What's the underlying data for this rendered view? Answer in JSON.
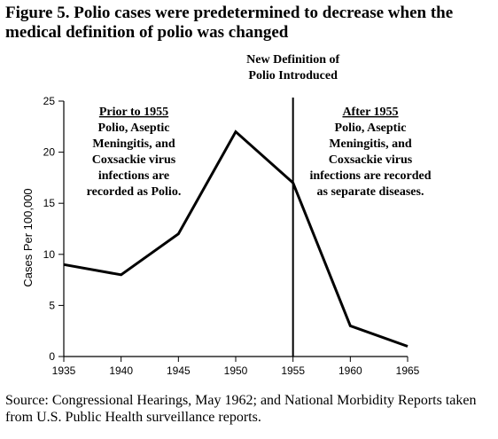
{
  "figure": {
    "title": "Figure 5. Polio cases were predetermined to decrease when the medical definition of polio was changed",
    "source": "Source: Congressional Hearings, May 1962; and National Morbidity Reports taken from U.S. Public Health surveillance reports."
  },
  "chart_data": {
    "type": "line",
    "title": "Figure 5. Polio cases were predetermined to decrease when the medical definition of polio was changed",
    "xlabel": "",
    "ylabel": "Cases Per 100,000",
    "x": [
      1935,
      1940,
      1945,
      1950,
      1955,
      1960,
      1965
    ],
    "series": [
      {
        "values": [
          9,
          8,
          12,
          22,
          17,
          3,
          1
        ]
      }
    ],
    "xlim": [
      1935,
      1965
    ],
    "ylim": [
      0,
      25
    ],
    "xticks": [
      "1935",
      "1940",
      "1945",
      "1950",
      "1955",
      "1960",
      "1965"
    ],
    "yticks": [
      "0",
      "5",
      "10",
      "15",
      "20",
      "25"
    ],
    "grid": false,
    "vline": {
      "x": 1955,
      "label_lines": [
        "New Definition of",
        "Polio Introduced"
      ]
    },
    "annotations": {
      "before": {
        "heading": "Prior to 1955",
        "lines": [
          "Polio, Aseptic",
          "Meningitis, and",
          "Coxsackie virus",
          "infections are",
          "recorded as Polio."
        ]
      },
      "after": {
        "heading": "After 1955",
        "lines": [
          "Polio, Aseptic",
          "Meningitis, and",
          "Coxsackie virus",
          "infections are recorded",
          "as separate diseases."
        ]
      }
    },
    "colors": {
      "line": "#000000",
      "axis": "#000000"
    }
  }
}
